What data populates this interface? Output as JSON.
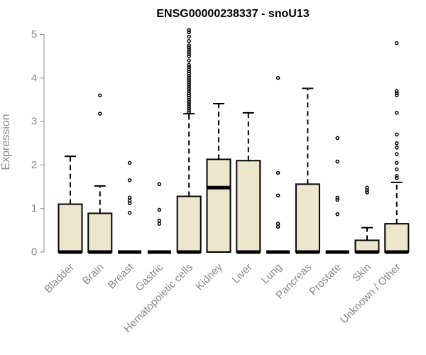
{
  "chart_data": {
    "type": "box",
    "title": "ENSG00000238337 - snoU13",
    "xlabel": "",
    "ylabel": "Expression",
    "ylim": [
      0,
      5.1
    ],
    "yticks": [
      0,
      1,
      2,
      3,
      4,
      5
    ],
    "box_fill": "#ede6cc",
    "box_stroke": "#000000",
    "axis_color": "#888888",
    "categories": [
      {
        "name": "Bladder",
        "q1": 0,
        "median": 0,
        "q3": 1.1,
        "whisker_high": 2.2,
        "outliers": []
      },
      {
        "name": "Brain",
        "q1": 0,
        "median": 0,
        "q3": 0.89,
        "whisker_high": 1.52,
        "outliers": [
          3.18,
          3.6
        ]
      },
      {
        "name": "Breast",
        "q1": 0,
        "median": 0,
        "q3": 0,
        "whisker_high": 0,
        "outliers": [
          0.9,
          1.12,
          1.18,
          1.25,
          1.65,
          2.05
        ]
      },
      {
        "name": "Gastric",
        "q1": 0,
        "median": 0,
        "q3": 0,
        "whisker_high": 0,
        "outliers": [
          0.65,
          0.72,
          0.97,
          1.56
        ]
      },
      {
        "name": "Hematopoietic cells",
        "q1": 0,
        "median": 0,
        "q3": 1.28,
        "whisker_high": 3.18,
        "outliers": [
          3.2,
          3.25,
          3.3,
          3.35,
          3.4,
          3.45,
          3.5,
          3.55,
          3.6,
          3.65,
          3.7,
          3.75,
          3.8,
          3.85,
          3.9,
          3.95,
          4.0,
          4.05,
          4.1,
          4.15,
          4.2,
          4.25,
          4.3,
          4.4,
          4.5,
          4.55,
          4.6,
          4.65,
          4.7,
          4.75,
          4.85,
          4.95,
          5.05,
          5.1
        ]
      },
      {
        "name": "Kidney",
        "q1": 0,
        "median": 1.48,
        "q3": 2.13,
        "whisker_high": 3.41,
        "outliers": []
      },
      {
        "name": "Liver",
        "q1": 0,
        "median": 0,
        "q3": 2.1,
        "whisker_high": 3.2,
        "outliers": []
      },
      {
        "name": "Lung",
        "q1": 0,
        "median": 0,
        "q3": 0,
        "whisker_high": 0,
        "outliers": [
          0.58,
          0.65,
          1.3,
          1.82,
          4.0
        ]
      },
      {
        "name": "Pancreas",
        "q1": 0,
        "median": 0,
        "q3": 1.56,
        "whisker_high": 3.76,
        "outliers": []
      },
      {
        "name": "Prostate",
        "q1": 0,
        "median": 0,
        "q3": 0,
        "whisker_high": 0,
        "outliers": [
          0.87,
          1.2,
          1.25,
          2.08,
          2.62
        ]
      },
      {
        "name": "Skin",
        "q1": 0,
        "median": 0,
        "q3": 0.27,
        "whisker_high": 0.56,
        "outliers": [
          1.37,
          1.42,
          1.48
        ]
      },
      {
        "name": "Unknown / Other",
        "q1": 0,
        "median": 0,
        "q3": 0.65,
        "whisker_high": 1.6,
        "outliers": [
          1.7,
          1.75,
          1.9,
          2.05,
          2.25,
          2.4,
          2.5,
          2.7,
          3.2,
          3.6,
          3.65,
          3.7,
          4.8
        ]
      }
    ]
  }
}
